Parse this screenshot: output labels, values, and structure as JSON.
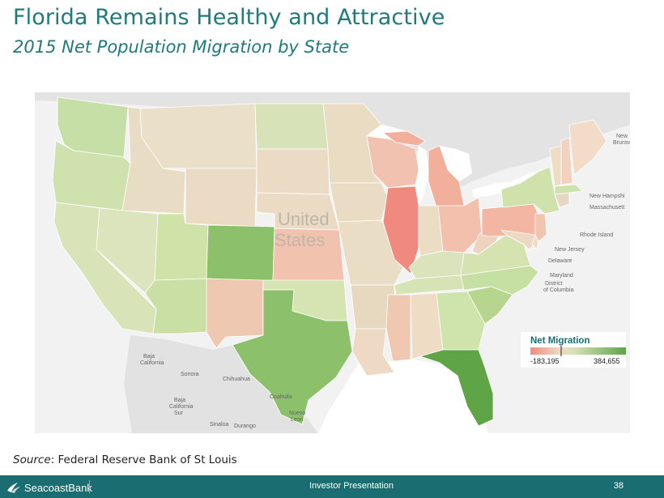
{
  "header": {
    "title": "Florida Remains Healthy and Attractive",
    "subtitle": "2015 Net Population Migration by State"
  },
  "map": {
    "country_label_line1": "United",
    "country_label_line2": "States",
    "place_labels": {
      "new_hampshire": "New Hampshi",
      "massachusetts": "Massachusett",
      "rhode_island": "Rhode Island",
      "new_jersey": "New Jersey",
      "delaware": "Delaware",
      "maryland": "Maryland",
      "district_of_columbia": "District\nof Columbia",
      "baja_california": "Baja\nCalifornia",
      "sonora": "Sonora",
      "chihuahua": "Chihuahua",
      "coahuila": "Coahuila",
      "baja_california_sur": "Baja\nCalifornia\nSur",
      "sinaloa": "Sinaloa",
      "durango": "Durango",
      "nuevo_leon": "Nuevo\nLeon",
      "new_brunswick": "New\nBrunswi"
    },
    "colors": {
      "strong_negative": "#f08a7e",
      "negative": "#f0b6a4",
      "slight_negative": "#eed8c4",
      "neutral": "#e8ddc4",
      "slight_positive": "#d8e2b8",
      "positive": "#c4dea0",
      "strong_positive": "#8cc06a",
      "top_positive": "#5fa447",
      "water": "#ffffff",
      "land_outside": "#d6d6d6"
    },
    "legend": {
      "title": "Net Migration",
      "min_label": "-183,195",
      "max_label": "384,655",
      "min_value": -183195,
      "max_value": 384655
    }
  },
  "source": {
    "label": "Source",
    "text": ":  Federal Reserve Bank of St Louis"
  },
  "footer": {
    "brand": "SeacoastBank",
    "center": "Investor Presentation",
    "page_number": "38"
  }
}
